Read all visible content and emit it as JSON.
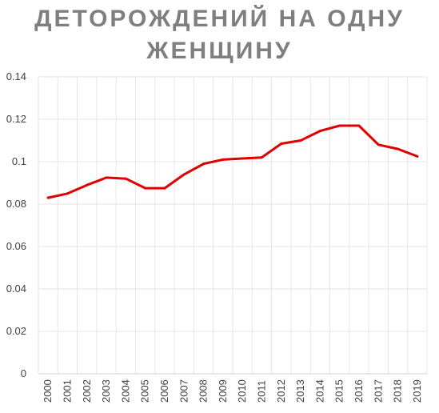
{
  "chart_data": {
    "type": "line",
    "title_lines": [
      "ДЕТОРОЖДЕНИЙ НА ОДНУ",
      "ЖЕНЩИНУ"
    ],
    "xlabel": "",
    "ylabel": "",
    "categories": [
      "2000",
      "2001",
      "2002",
      "2003",
      "2004",
      "2005",
      "2006",
      "2007",
      "2008",
      "2009",
      "2010",
      "2011",
      "2012",
      "2013",
      "2014",
      "2015",
      "2016",
      "2017",
      "2018",
      "2019"
    ],
    "series": [
      {
        "color": "#e00000",
        "values": [
          0.083,
          0.085,
          0.089,
          0.0925,
          0.092,
          0.0875,
          0.0875,
          0.094,
          0.099,
          0.101,
          0.1015,
          0.102,
          0.1085,
          0.11,
          0.1145,
          0.117,
          0.117,
          0.108,
          0.106,
          0.1025
        ]
      }
    ],
    "ylim": [
      0,
      0.14
    ],
    "yticks": [
      "0",
      "0.02",
      "0.04",
      "0.06",
      "0.08",
      "0.1",
      "0.12",
      "0.14"
    ],
    "grid": true,
    "legend": "none"
  }
}
